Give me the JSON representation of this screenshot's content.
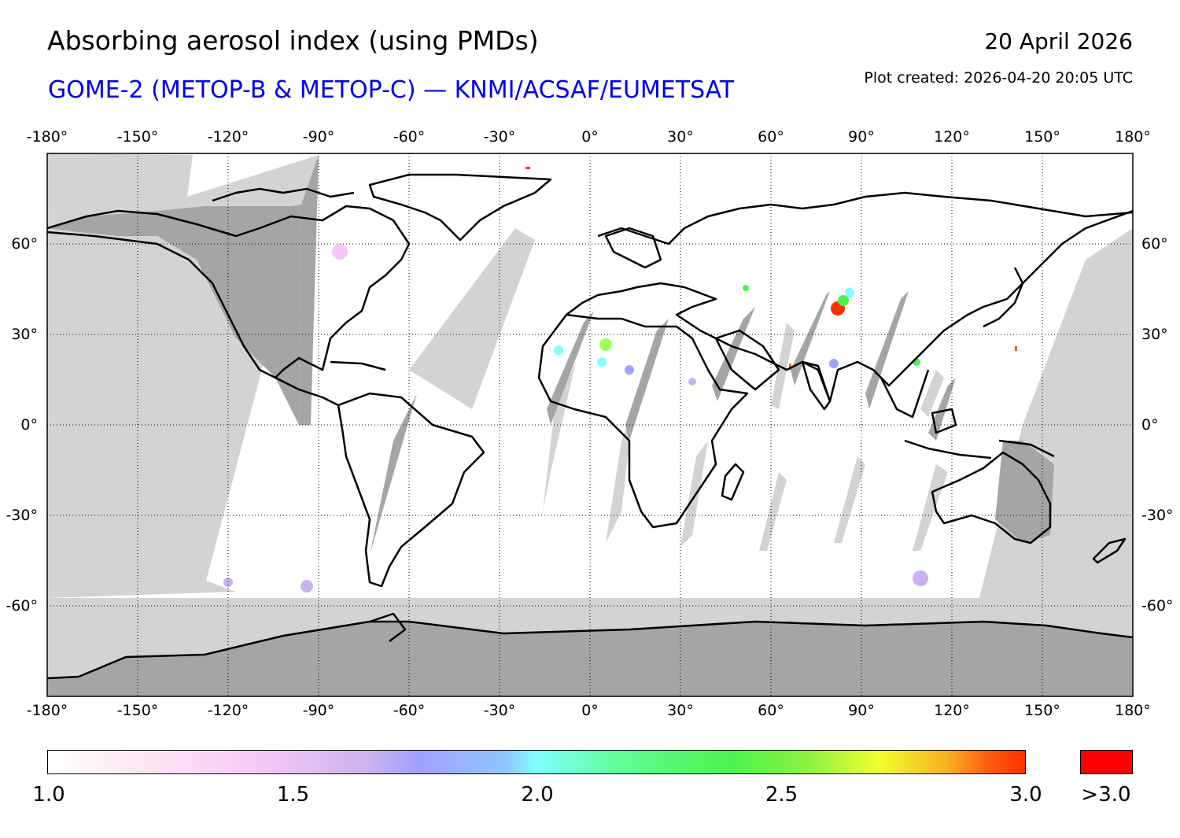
{
  "header": {
    "title": "Absorbing aerosol index (using PMDs)",
    "subtitle": "GOME-2 (METOP-B & METOP-C) — KNMI/ACSAF/EUMETSAT",
    "date": "20 April 2026",
    "plot_created": "Plot created: 2026-04-20 20:05 UTC"
  },
  "axes": {
    "lon_labels": [
      "-180°",
      "-150°",
      "-120°",
      "-90°",
      "-60°",
      "-30°",
      "0°",
      "30°",
      "60°",
      "90°",
      "120°",
      "150°",
      "180°"
    ],
    "lat_labels": [
      "60°",
      "30°",
      "0°",
      "-30°",
      "-60°"
    ],
    "lon_range": [
      -180,
      180
    ],
    "lat_range": [
      -90,
      90
    ]
  },
  "colorbar": {
    "labels": [
      "1.0",
      "1.5",
      "2.0",
      "2.5",
      "3.0",
      ">3.0"
    ],
    "range": [
      1.0,
      3.0
    ],
    "over_color": "#ff0000"
  },
  "colors": {
    "no_data": "#d3d3d3",
    "land_gap": "#a5a5a5",
    "coastline": "#000000",
    "subtitle": "#0000ee"
  }
}
